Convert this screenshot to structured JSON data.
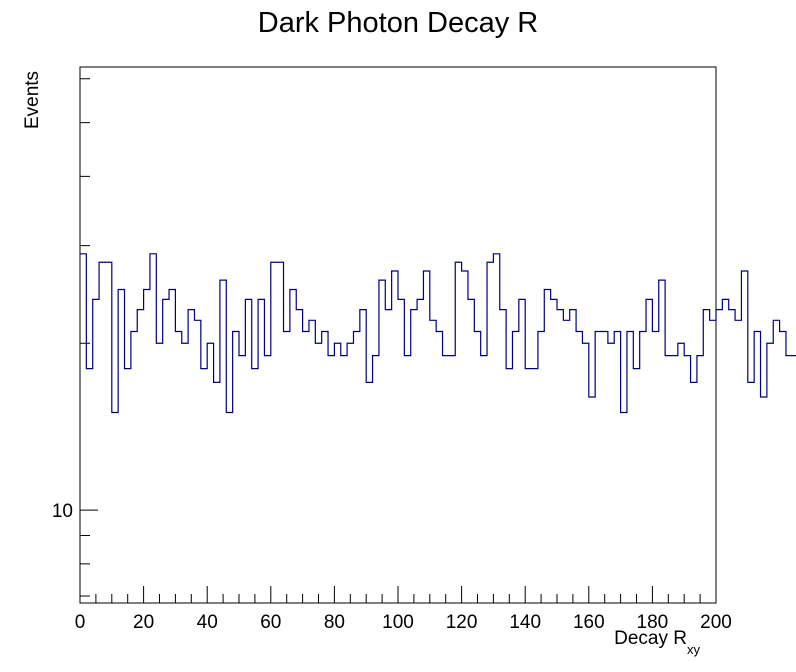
{
  "chart_data": {
    "type": "histogram",
    "title": "Dark Photon Decay R",
    "xlabel": "Decay R",
    "xlabel_subscript": "xy",
    "ylabel": "Events",
    "xlim": [
      0,
      200
    ],
    "ylim": [
      6.8,
      63
    ],
    "y_scale": "log",
    "grid": false,
    "legend": "none",
    "line_color": "#000080",
    "x_tick_labels": [
      "0",
      "20",
      "40",
      "60",
      "80",
      "100",
      "120",
      "140",
      "160",
      "180",
      "200"
    ],
    "y_tick_labels": [
      "10"
    ],
    "bin_width": 2,
    "bin_edges_start": 0,
    "values": [
      29,
      18,
      24,
      28,
      28,
      15,
      25,
      18,
      21,
      23,
      25,
      29,
      20,
      24,
      25,
      21,
      20,
      23,
      22,
      18,
      20,
      17,
      26,
      15,
      21,
      19,
      24,
      18,
      24,
      19,
      28,
      28,
      21,
      25,
      23,
      21,
      22,
      20,
      21,
      19,
      20,
      19,
      20,
      21,
      23,
      17,
      19,
      26,
      23,
      27,
      24,
      19,
      23,
      24,
      27,
      22,
      21,
      19,
      19,
      28,
      27,
      24,
      21,
      19,
      28,
      29,
      23,
      18,
      21,
      24,
      18,
      18,
      21,
      25,
      24,
      23,
      22,
      23,
      21,
      20,
      16,
      21,
      21,
      20,
      21,
      15,
      21,
      18,
      21,
      24,
      21,
      26,
      19,
      19,
      20,
      19,
      17,
      19,
      23,
      22,
      23,
      24,
      23,
      22,
      27,
      17,
      21,
      16,
      20,
      22,
      21,
      19,
      19,
      18,
      14,
      18,
      28,
      24,
      25,
      27,
      16,
      16,
      14,
      23,
      21,
      23,
      22,
      21,
      19,
      19,
      14,
      13,
      22,
      25,
      22,
      17,
      22,
      25,
      16,
      18,
      21,
      23,
      23,
      23,
      17,
      19,
      26,
      19,
      16,
      19,
      21,
      27,
      23,
      22,
      21,
      21,
      20,
      22,
      17,
      18,
      19,
      20,
      19,
      17,
      16,
      21,
      20,
      19,
      26,
      20
    ]
  }
}
